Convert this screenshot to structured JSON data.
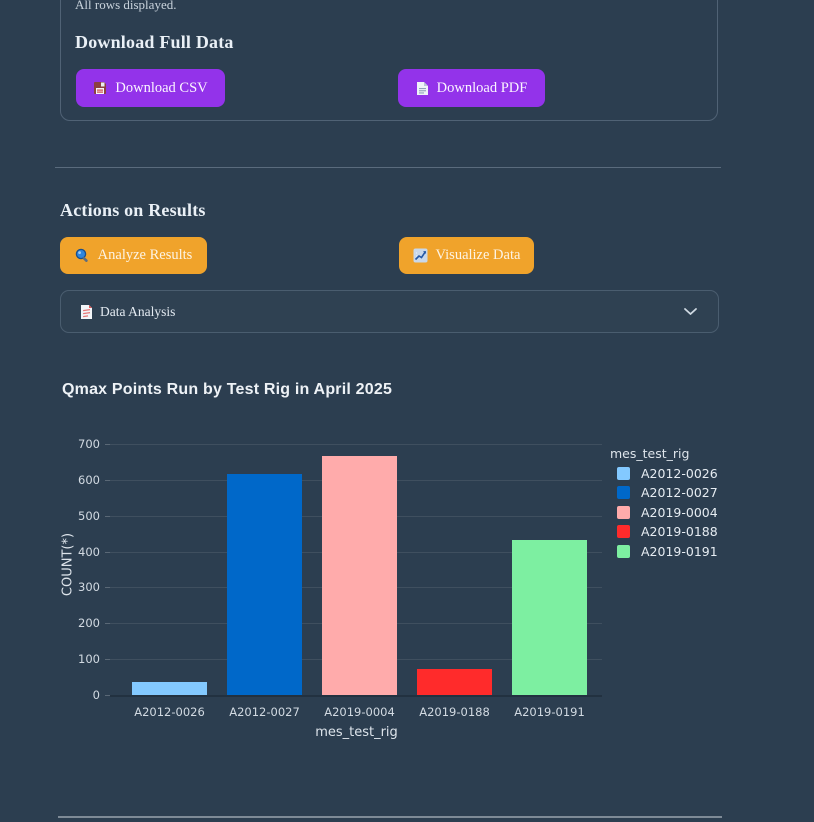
{
  "colors": {
    "background": "#2c3e50",
    "download_button": "#9333ea",
    "action_button": "#f0a32b"
  },
  "icons": {
    "csv": "floppy-disk-icon",
    "pdf": "document-icon",
    "analyze": "magnifier-icon",
    "visualize": "chart-increasing-icon",
    "expander": "red-document-icon",
    "expander_chevron": "chevron-down-icon"
  },
  "results_table": {
    "footer_note": "All rows displayed."
  },
  "download_section": {
    "title": "Download Full Data",
    "csv_button": "Download CSV",
    "pdf_button": "Download PDF"
  },
  "actions_section": {
    "title": "Actions on Results",
    "analyze_button": "Analyze Results",
    "visualize_button": "Visualize Data"
  },
  "analysis_expander": {
    "label": "Data Analysis"
  },
  "chart_data": {
    "type": "bar",
    "title": "Qmax Points Run by Test Rig in April 2025",
    "categories": [
      "A2012-0026",
      "A2012-0027",
      "A2019-0004",
      "A2019-0188",
      "A2019-0191"
    ],
    "values": [
      35,
      615,
      666,
      73,
      432
    ],
    "bar_colors": [
      "#83c9ff",
      "#0068c9",
      "#ffabab",
      "#ff2b2b",
      "#7defa1"
    ],
    "xlabel": "mes_test_rig",
    "ylabel": "COUNT(*)",
    "ylim": [
      0,
      700
    ],
    "yticks": [
      0,
      100,
      200,
      300,
      400,
      500,
      600,
      700
    ],
    "grid": true,
    "legend": {
      "title": "mes_test_rig",
      "position": "right",
      "entries": [
        "A2012-0026",
        "A2012-0027",
        "A2019-0004",
        "A2019-0188",
        "A2019-0191"
      ]
    }
  }
}
